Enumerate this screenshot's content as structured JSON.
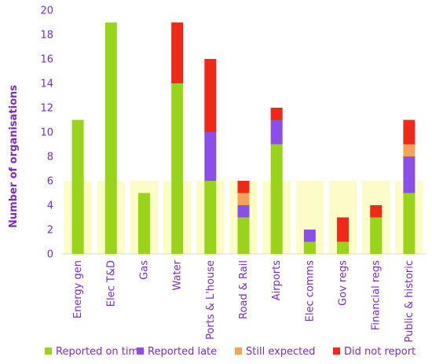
{
  "chart_data": {
    "type": "bar",
    "stacked": true,
    "title": "",
    "xlabel": "",
    "ylabel": "Number of organisations",
    "ylim": [
      0,
      20
    ],
    "yticks": [
      0,
      2,
      4,
      6,
      8,
      10,
      12,
      14,
      16,
      18,
      20
    ],
    "grid": false,
    "legend_position": "bottom",
    "categories": [
      "Energy gen",
      "Elec T&D",
      "Gas",
      "Water",
      "Ports & L'house",
      "Road & Rail",
      "Airports",
      "Elec comms",
      "Gov regs",
      "Financial regs",
      "Public & historic"
    ],
    "series": [
      {
        "name": "Reported on time",
        "color": "#99d41a",
        "values": [
          11,
          19,
          5,
          14,
          6,
          3,
          9,
          1,
          1,
          3,
          5
        ]
      },
      {
        "name": "Reported late",
        "color": "#8a4fe8",
        "values": [
          0,
          0,
          0,
          0,
          4,
          1,
          2,
          1,
          0,
          0,
          3
        ]
      },
      {
        "name": "Still expected",
        "color": "#f5a35a",
        "values": [
          0,
          0,
          0,
          0,
          0,
          1,
          0,
          0,
          0,
          0,
          1
        ]
      },
      {
        "name": "Did not report",
        "color": "#f02818",
        "values": [
          0,
          0,
          0,
          5,
          6,
          1,
          1,
          0,
          2,
          1,
          2
        ]
      }
    ],
    "background_highlight_color": "#fbfcc8",
    "axis_text_color": "#7b2cc4"
  }
}
